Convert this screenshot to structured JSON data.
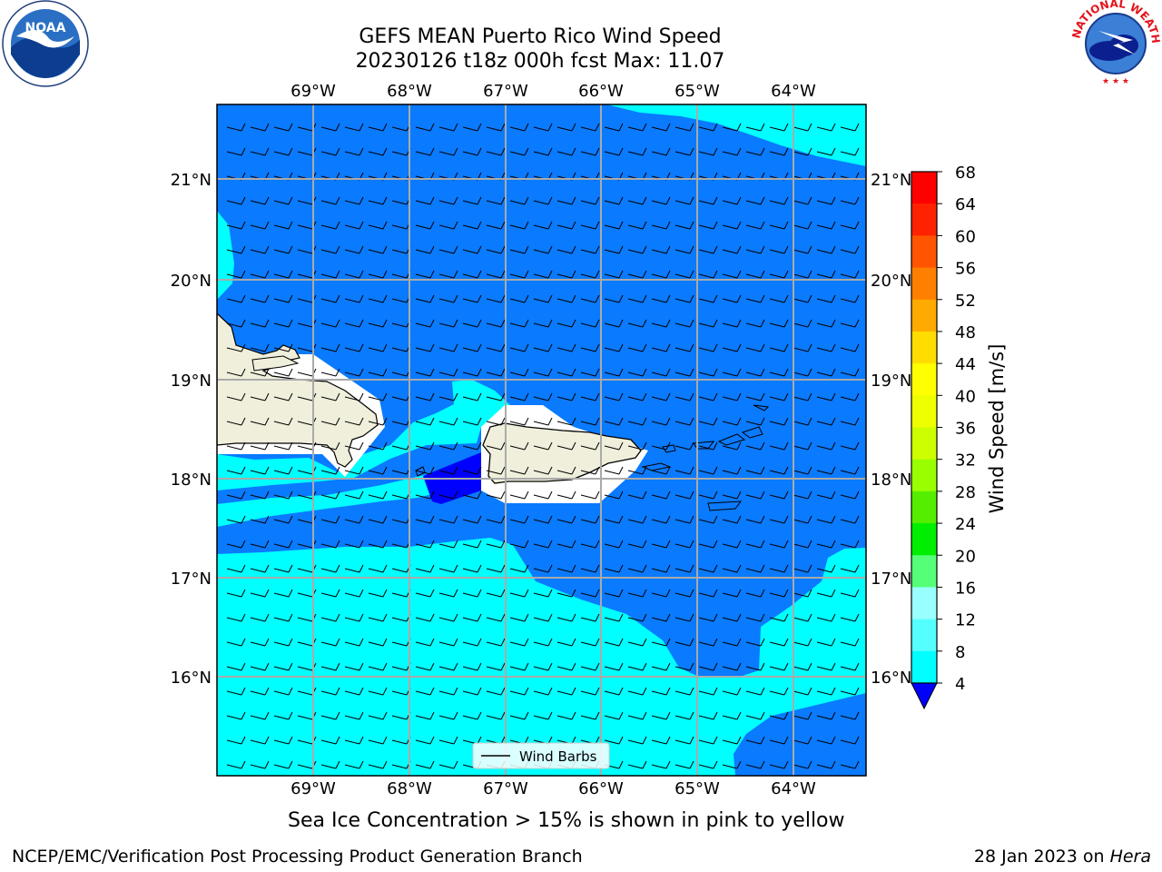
{
  "header": {
    "title_line1": "GEFS MEAN Puerto Rico Wind Speed",
    "title_line2": "20230126 t18z 000h fcst   Max: 11.07"
  },
  "logos": {
    "left": {
      "name": "noaa-logo",
      "text": "NOAA"
    },
    "right": {
      "name": "nws-logo",
      "text": "NATIONAL WEATHER SERVICE"
    }
  },
  "map": {
    "lon_labels": [
      "69°W",
      "68°W",
      "67°W",
      "66°W",
      "65°W",
      "64°W"
    ],
    "lat_labels": [
      "21°N",
      "20°N",
      "19°N",
      "18°N",
      "17°N",
      "16°N"
    ],
    "legend_label": "Wind Barbs",
    "colors": {
      "land": "#efefdc",
      "wind_4_8": "#0a7aff",
      "wind_below_4": "#0000ff",
      "wind_8_12": "#00ffff",
      "wind_12_16": "#33ffff"
    }
  },
  "colorbar": {
    "label": "Wind Speed [m/s]",
    "ticks": [
      "68",
      "64",
      "60",
      "56",
      "52",
      "48",
      "44",
      "40",
      "36",
      "32",
      "28",
      "24",
      "20",
      "16",
      "12",
      "8",
      "4"
    ],
    "colors": [
      "#ff0000",
      "#ff2200",
      "#ff5500",
      "#ff8000",
      "#ffaa00",
      "#ffdd00",
      "#ffff00",
      "#eeff00",
      "#ccff00",
      "#99ff00",
      "#55ee00",
      "#00ee00",
      "#55ff77",
      "#99ffff",
      "#55ffff",
      "#00ffff",
      "#0a7aff"
    ],
    "under_color": "#0000ff"
  },
  "note": "Sea Ice Concentration > 15% is shown in pink to yellow",
  "footer": {
    "left": "NCEP/EMC/Verification Post Processing Product Generation Branch",
    "right_prefix": "28 Jan 2023 on ",
    "right_host": "Hera"
  }
}
